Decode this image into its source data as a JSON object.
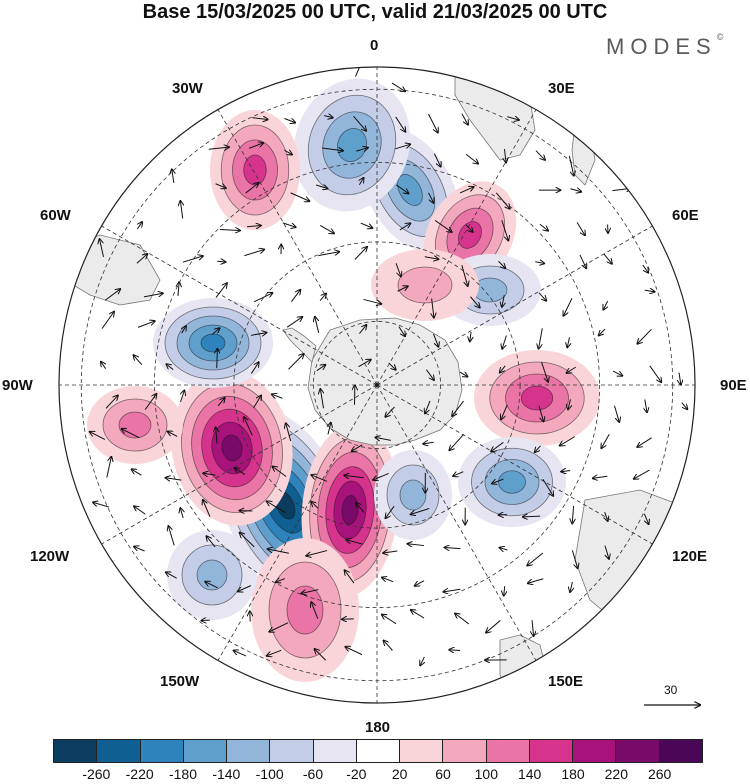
{
  "title": "Base 15/03/2025 00 UTC, valid 21/03/2025 00 UTC",
  "brand": {
    "name": "MODES",
    "mark": "©"
  },
  "longitude_labels": [
    "0",
    "30E",
    "60E",
    "90E",
    "120E",
    "150E",
    "180",
    "150W",
    "120W",
    "90W",
    "60W",
    "30W"
  ],
  "reference_vector": {
    "label": "30"
  },
  "colorbar": {
    "ticks": [
      "-260",
      "-220",
      "-180",
      "-140",
      "-100",
      "-60",
      "-20",
      "20",
      "60",
      "100",
      "140",
      "180",
      "220",
      "260"
    ],
    "colors": [
      "#0b3d60",
      "#0f5f93",
      "#2e83bd",
      "#5e9fcc",
      "#92b5da",
      "#c3cde7",
      "#e6e5f1",
      "#ffffff",
      "#f9d4d8",
      "#f3a8bd",
      "#ea74a5",
      "#d6338d",
      "#a8127b",
      "#7a0a6a",
      "#4a0758"
    ]
  },
  "map": {
    "projection": "south polar stereographic",
    "background_land": "#ececec",
    "grid": "dashed",
    "anomalies": [
      {
        "sign": "neg",
        "magnitude": 260
      },
      {
        "sign": "pos",
        "magnitude": 220
      },
      {
        "sign": "pos",
        "magnitude": 220
      },
      {
        "sign": "neg",
        "magnitude": 180
      },
      {
        "sign": "neg",
        "magnitude": 140
      },
      {
        "sign": "pos",
        "magnitude": 140
      },
      {
        "sign": "pos",
        "magnitude": 140
      },
      {
        "sign": "neg",
        "magnitude": 120
      },
      {
        "sign": "pos",
        "magnitude": 120
      },
      {
        "sign": "neg",
        "magnitude": 120
      },
      {
        "sign": "pos",
        "magnitude": 100
      },
      {
        "sign": "neg",
        "magnitude": 100
      },
      {
        "sign": "neg",
        "magnitude": 80
      },
      {
        "sign": "pos",
        "magnitude": 80
      },
      {
        "sign": "neg",
        "magnitude": 80
      },
      {
        "sign": "pos",
        "magnitude": 60
      }
    ]
  }
}
